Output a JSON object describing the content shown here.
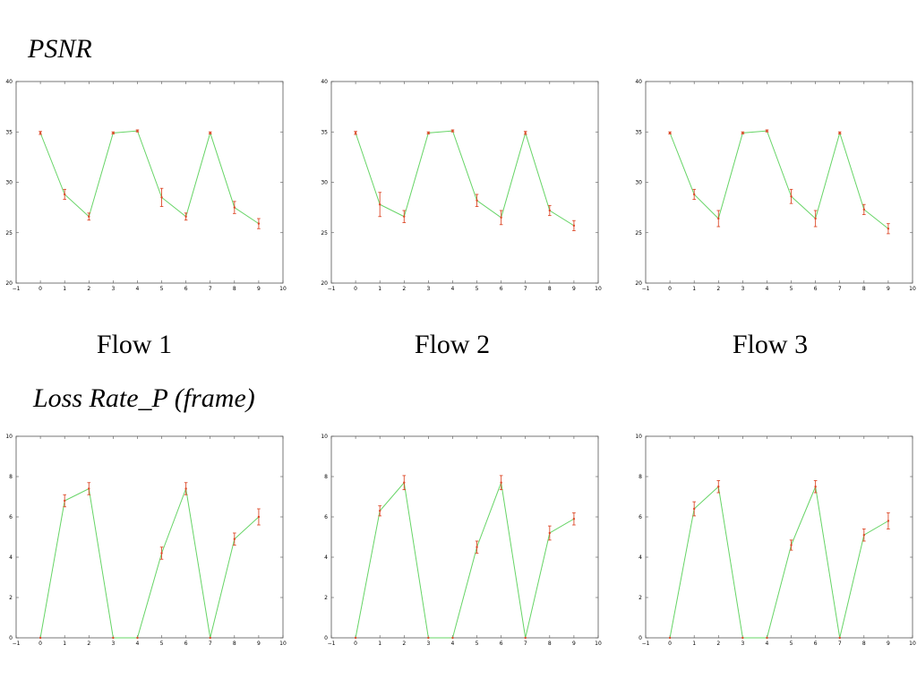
{
  "section_titles": {
    "psnr": "PSNR",
    "loss": "Loss Rate_P (frame)"
  },
  "flow_labels": [
    "Flow 1",
    "Flow 2",
    "Flow 3"
  ],
  "colors": {
    "line": "#66d466",
    "error_bar": "#dd4a2a",
    "axis": "#000000"
  },
  "chart_data": [
    {
      "type": "line",
      "group": "psnr",
      "flow": "Flow 1",
      "x": [
        0,
        1,
        2,
        3,
        4,
        5,
        6,
        7,
        8,
        9
      ],
      "values": [
        34.9,
        28.8,
        26.6,
        34.9,
        35.1,
        28.5,
        26.6,
        34.9,
        27.5,
        25.9
      ],
      "errors": [
        0.15,
        0.5,
        0.35,
        0.1,
        0.1,
        0.9,
        0.35,
        0.1,
        0.6,
        0.5
      ],
      "xlim": [
        -1,
        10
      ],
      "ylim": [
        20,
        40
      ],
      "xticks": [
        -1,
        0,
        1,
        2,
        3,
        4,
        5,
        6,
        7,
        8,
        9,
        10
      ],
      "yticks": [
        20,
        25,
        30,
        35,
        40
      ],
      "grid": false
    },
    {
      "type": "line",
      "group": "psnr",
      "flow": "Flow 2",
      "x": [
        0,
        1,
        2,
        3,
        4,
        5,
        6,
        7,
        8,
        9
      ],
      "values": [
        34.9,
        27.8,
        26.6,
        34.9,
        35.1,
        28.2,
        26.5,
        34.9,
        27.2,
        25.7
      ],
      "errors": [
        0.15,
        1.2,
        0.6,
        0.1,
        0.1,
        0.6,
        0.7,
        0.15,
        0.5,
        0.5
      ],
      "xlim": [
        -1,
        10
      ],
      "ylim": [
        20,
        40
      ],
      "xticks": [
        -1,
        0,
        1,
        2,
        3,
        4,
        5,
        6,
        7,
        8,
        9,
        10
      ],
      "yticks": [
        20,
        25,
        30,
        35,
        40
      ],
      "grid": false
    },
    {
      "type": "line",
      "group": "psnr",
      "flow": "Flow 3",
      "x": [
        0,
        1,
        2,
        3,
        4,
        5,
        6,
        7,
        8,
        9
      ],
      "values": [
        34.9,
        28.8,
        26.4,
        34.9,
        35.1,
        28.6,
        26.4,
        34.9,
        27.3,
        25.4
      ],
      "errors": [
        0.1,
        0.5,
        0.8,
        0.1,
        0.1,
        0.7,
        0.8,
        0.1,
        0.5,
        0.5
      ],
      "xlim": [
        -1,
        10
      ],
      "ylim": [
        20,
        40
      ],
      "xticks": [
        -1,
        0,
        1,
        2,
        3,
        4,
        5,
        6,
        7,
        8,
        9,
        10
      ],
      "yticks": [
        20,
        25,
        30,
        35,
        40
      ],
      "grid": false
    },
    {
      "type": "line",
      "group": "loss",
      "flow": "Flow 1",
      "x": [
        0,
        1,
        2,
        3,
        4,
        5,
        6,
        7,
        8,
        9
      ],
      "values": [
        0,
        6.8,
        7.4,
        0,
        0,
        4.2,
        7.4,
        0,
        4.9,
        6.0
      ],
      "errors": [
        0,
        0.3,
        0.3,
        0,
        0,
        0.3,
        0.3,
        0,
        0.3,
        0.4
      ],
      "xlim": [
        -1,
        10
      ],
      "ylim": [
        0,
        10
      ],
      "xticks": [
        -1,
        0,
        1,
        2,
        3,
        4,
        5,
        6,
        7,
        8,
        9,
        10
      ],
      "yticks": [
        0,
        2,
        4,
        6,
        8,
        10
      ],
      "grid": false
    },
    {
      "type": "line",
      "group": "loss",
      "flow": "Flow 2",
      "x": [
        0,
        1,
        2,
        3,
        4,
        5,
        6,
        7,
        8,
        9
      ],
      "values": [
        0,
        6.3,
        7.7,
        0,
        0,
        4.5,
        7.7,
        0,
        5.2,
        5.9
      ],
      "errors": [
        0,
        0.25,
        0.35,
        0,
        0,
        0.3,
        0.35,
        0,
        0.35,
        0.3
      ],
      "xlim": [
        -1,
        10
      ],
      "ylim": [
        0,
        10
      ],
      "xticks": [
        -1,
        0,
        1,
        2,
        3,
        4,
        5,
        6,
        7,
        8,
        9,
        10
      ],
      "yticks": [
        0,
        2,
        4,
        6,
        8,
        10
      ],
      "grid": false
    },
    {
      "type": "line",
      "group": "loss",
      "flow": "Flow 3",
      "x": [
        0,
        1,
        2,
        3,
        4,
        5,
        6,
        7,
        8,
        9
      ],
      "values": [
        0,
        6.4,
        7.5,
        0,
        0,
        4.6,
        7.5,
        0,
        5.1,
        5.8
      ],
      "errors": [
        0,
        0.35,
        0.3,
        0,
        0,
        0.25,
        0.3,
        0,
        0.3,
        0.4
      ],
      "xlim": [
        -1,
        10
      ],
      "ylim": [
        0,
        10
      ],
      "xticks": [
        -1,
        0,
        1,
        2,
        3,
        4,
        5,
        6,
        7,
        8,
        9,
        10
      ],
      "yticks": [
        0,
        2,
        4,
        6,
        8,
        10
      ],
      "grid": false
    }
  ]
}
